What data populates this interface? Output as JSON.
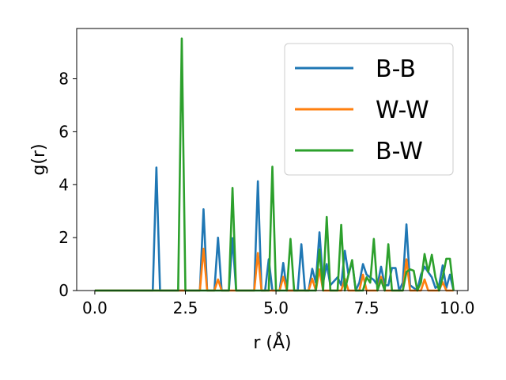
{
  "chart_data": {
    "type": "line",
    "xlabel": "r (Å)",
    "ylabel": "g(r)",
    "xlim": [
      -0.5,
      10.3
    ],
    "ylim": [
      0,
      9.9
    ],
    "xticks": [
      "0.0",
      "2.5",
      "5.0",
      "7.5",
      "10.0"
    ],
    "yticks": [
      "0",
      "2",
      "4",
      "6",
      "8"
    ],
    "grid": false,
    "legend_position": "top-right",
    "series": [
      {
        "name": "B-B",
        "color": "#1f77b4",
        "points": [
          [
            0.0,
            0
          ],
          [
            1.6,
            0
          ],
          [
            1.7,
            4.65
          ],
          [
            1.8,
            0
          ],
          [
            2.9,
            0
          ],
          [
            3.0,
            3.07
          ],
          [
            3.1,
            0
          ],
          [
            3.3,
            0
          ],
          [
            3.4,
            2.0
          ],
          [
            3.5,
            0
          ],
          [
            3.7,
            0
          ],
          [
            3.8,
            1.98
          ],
          [
            3.9,
            0
          ],
          [
            4.4,
            0
          ],
          [
            4.5,
            4.13
          ],
          [
            4.6,
            0
          ],
          [
            4.7,
            0
          ],
          [
            4.8,
            1.18
          ],
          [
            4.9,
            0
          ],
          [
            5.1,
            0
          ],
          [
            5.2,
            1.04
          ],
          [
            5.3,
            0
          ],
          [
            5.6,
            0
          ],
          [
            5.7,
            1.75
          ],
          [
            5.8,
            0
          ],
          [
            5.9,
            0
          ],
          [
            6.0,
            0.82
          ],
          [
            6.1,
            0.3
          ],
          [
            6.2,
            2.2
          ],
          [
            6.3,
            0.3
          ],
          [
            6.4,
            1.0
          ],
          [
            6.5,
            0.2
          ],
          [
            6.7,
            0.5
          ],
          [
            6.8,
            0.2
          ],
          [
            6.9,
            1.5
          ],
          [
            7.0,
            0.6
          ],
          [
            7.1,
            1.1
          ],
          [
            7.2,
            0
          ],
          [
            7.3,
            0.3
          ],
          [
            7.4,
            1.0
          ],
          [
            7.5,
            0.6
          ],
          [
            7.6,
            0.5
          ],
          [
            7.7,
            0.4
          ],
          [
            7.8,
            0.2
          ],
          [
            7.9,
            0.9
          ],
          [
            8.0,
            0.2
          ],
          [
            8.1,
            0.2
          ],
          [
            8.2,
            0.85
          ],
          [
            8.3,
            0.85
          ],
          [
            8.4,
            0
          ],
          [
            8.5,
            0.3
          ],
          [
            8.6,
            2.5
          ],
          [
            8.7,
            0.2
          ],
          [
            8.8,
            0.1
          ],
          [
            8.9,
            0
          ],
          [
            9.0,
            0.6
          ],
          [
            9.1,
            0.9
          ],
          [
            9.2,
            0.7
          ],
          [
            9.3,
            0.5
          ],
          [
            9.4,
            0.1
          ],
          [
            9.5,
            0.2
          ],
          [
            9.6,
            0.95
          ],
          [
            9.7,
            0.1
          ],
          [
            9.8,
            0.6
          ],
          [
            9.9,
            0
          ]
        ]
      },
      {
        "name": "W-W",
        "color": "#ff7f0e",
        "points": [
          [
            0.0,
            0
          ],
          [
            2.9,
            0
          ],
          [
            3.0,
            1.58
          ],
          [
            3.1,
            0
          ],
          [
            3.3,
            0
          ],
          [
            3.4,
            0.42
          ],
          [
            3.5,
            0
          ],
          [
            4.4,
            0
          ],
          [
            4.5,
            1.42
          ],
          [
            4.6,
            0
          ],
          [
            5.1,
            0
          ],
          [
            5.2,
            0.52
          ],
          [
            5.3,
            0
          ],
          [
            5.9,
            0
          ],
          [
            6.0,
            0.45
          ],
          [
            6.1,
            0
          ],
          [
            6.2,
            0.8
          ],
          [
            6.3,
            0
          ],
          [
            6.8,
            0
          ],
          [
            6.9,
            0.45
          ],
          [
            7.0,
            0
          ],
          [
            7.3,
            0
          ],
          [
            7.4,
            0.6
          ],
          [
            7.5,
            0
          ],
          [
            7.8,
            0
          ],
          [
            7.9,
            0.52
          ],
          [
            8.0,
            0
          ],
          [
            8.5,
            0
          ],
          [
            8.6,
            1.18
          ],
          [
            8.7,
            0
          ],
          [
            9.0,
            0
          ],
          [
            9.1,
            0.42
          ],
          [
            9.2,
            0
          ],
          [
            9.5,
            0
          ],
          [
            9.6,
            0.32
          ],
          [
            9.7,
            0
          ],
          [
            9.9,
            0
          ]
        ]
      },
      {
        "name": "B-W",
        "color": "#2ca02c",
        "points": [
          [
            0.0,
            0
          ],
          [
            2.3,
            0
          ],
          [
            2.4,
            9.52
          ],
          [
            2.5,
            0
          ],
          [
            3.7,
            0
          ],
          [
            3.8,
            3.88
          ],
          [
            3.9,
            0
          ],
          [
            4.8,
            0
          ],
          [
            4.9,
            4.68
          ],
          [
            5.0,
            0
          ],
          [
            5.3,
            0
          ],
          [
            5.4,
            1.95
          ],
          [
            5.5,
            0
          ],
          [
            6.1,
            0
          ],
          [
            6.2,
            1.55
          ],
          [
            6.3,
            0
          ],
          [
            6.4,
            2.78
          ],
          [
            6.5,
            0
          ],
          [
            6.7,
            0
          ],
          [
            6.8,
            2.48
          ],
          [
            6.9,
            0
          ],
          [
            7.0,
            0.6
          ],
          [
            7.1,
            1.15
          ],
          [
            7.2,
            0
          ],
          [
            7.4,
            0
          ],
          [
            7.5,
            0.5
          ],
          [
            7.6,
            0.3
          ],
          [
            7.7,
            1.95
          ],
          [
            7.8,
            0
          ],
          [
            7.9,
            0.4
          ],
          [
            8.0,
            0
          ],
          [
            8.1,
            1.75
          ],
          [
            8.2,
            0
          ],
          [
            8.5,
            0
          ],
          [
            8.6,
            0.7
          ],
          [
            8.7,
            0.8
          ],
          [
            8.8,
            0.75
          ],
          [
            8.9,
            0
          ],
          [
            9.0,
            0.3
          ],
          [
            9.1,
            1.38
          ],
          [
            9.2,
            0.7
          ],
          [
            9.3,
            1.35
          ],
          [
            9.4,
            0.5
          ],
          [
            9.5,
            0
          ],
          [
            9.6,
            0.5
          ],
          [
            9.7,
            1.2
          ],
          [
            9.8,
            1.2
          ],
          [
            9.9,
            0
          ]
        ]
      }
    ]
  }
}
